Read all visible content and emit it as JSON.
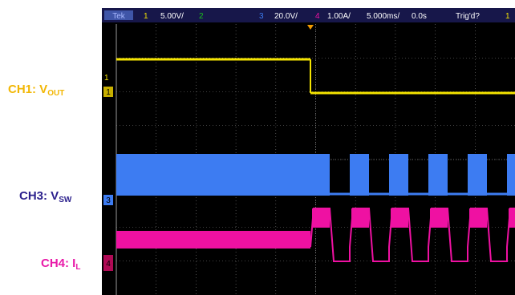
{
  "labels": {
    "ch1": {
      "name": "CH1: V",
      "sub": "OUT"
    },
    "ch3": {
      "name": "CH3: V",
      "sub": "SW"
    },
    "ch4": {
      "name": "CH4: I",
      "sub": "L"
    }
  },
  "header": {
    "badge": "Tek",
    "ch1_num": "1",
    "ch1_scale": "5.00V/",
    "ch2_num": "2",
    "ch3_num": "3",
    "ch3_scale": "20.0V/",
    "ch4_num": "4",
    "ch4_scale": "1.00A/",
    "timebase": "5.000ms/",
    "delay": "0.0s",
    "trigger_status": "Trig'd?",
    "trigger_channel": "1"
  },
  "markers": {
    "ch1": "1",
    "ch1_ground": "1",
    "ch3": "3",
    "ch4": "4"
  },
  "colors": {
    "ch1": "#f5e400",
    "ch2": "#19c419",
    "ch3": "#3d7cf2",
    "ch4": "#ef11a2",
    "grid": "#7f7f7f",
    "trigger": "#f29a00",
    "header_bg": "#17174a"
  }
}
